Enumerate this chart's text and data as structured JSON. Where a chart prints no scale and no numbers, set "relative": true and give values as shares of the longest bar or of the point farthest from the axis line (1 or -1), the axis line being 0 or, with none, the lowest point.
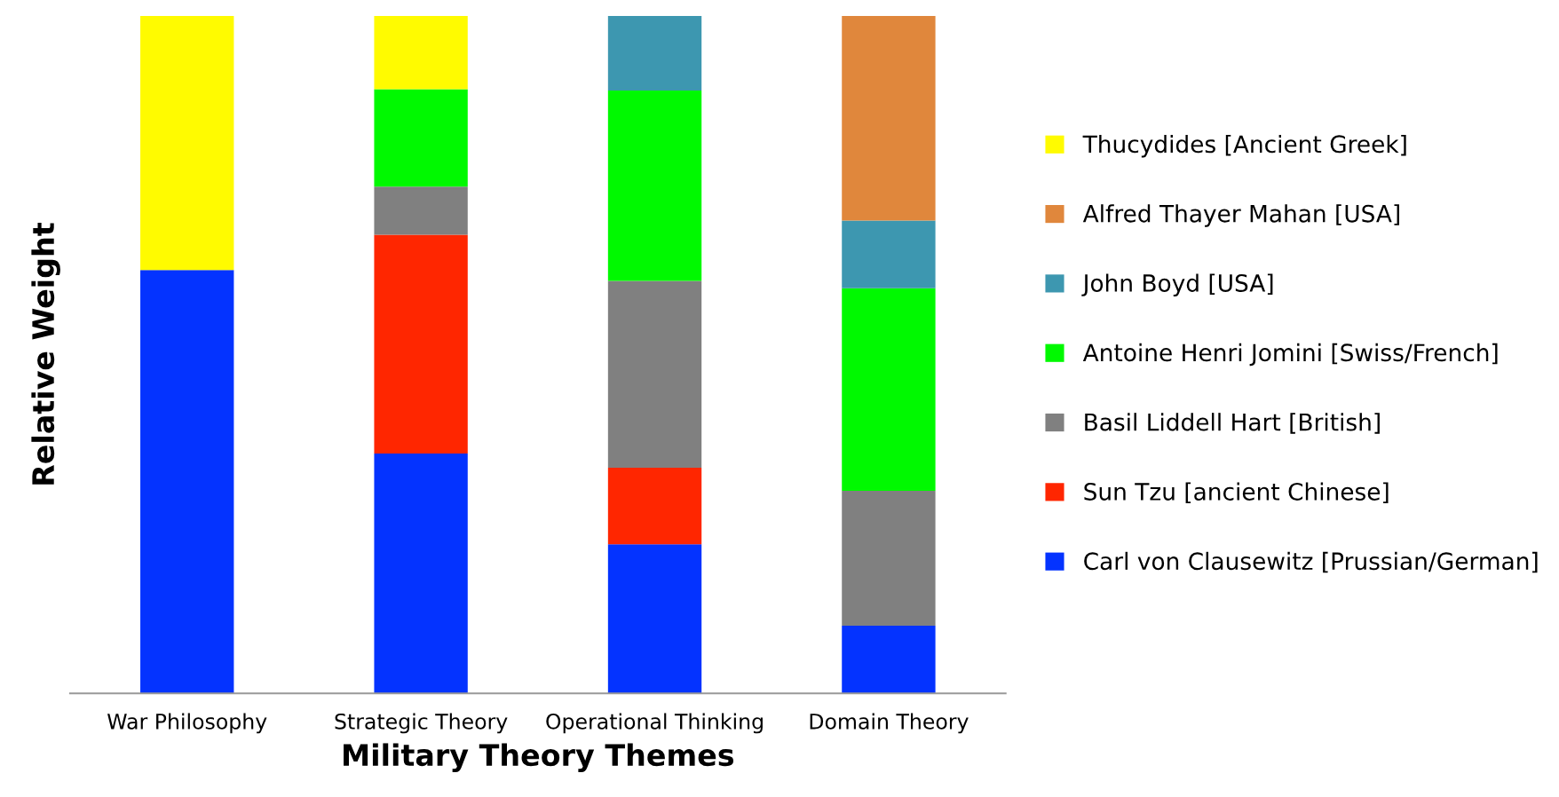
{
  "chart_data": {
    "type": "bar",
    "stacked": true,
    "relative": true,
    "xlabel": "Military Theory Themes",
    "ylabel": "Relative Weight",
    "legend": "right",
    "grid": false,
    "categories": [
      "War Philosophy",
      "Strategic Theory",
      "Operational Thinking",
      "Domain Theory"
    ],
    "series": [
      {
        "name": "Carl von Clausewitz [Prussian/German]",
        "color": "#0433ff",
        "values": [
          0.625,
          0.354,
          0.22,
          0.1
        ]
      },
      {
        "name": "Sun Tzu [ancient Chinese]",
        "color": "#ff2600",
        "values": [
          0,
          0.323,
          0.113,
          0
        ]
      },
      {
        "name": "Basil Liddell Hart [British]",
        "color": "#808080",
        "values": [
          0,
          0.071,
          0.276,
          0.199
        ]
      },
      {
        "name": "Antoine Henri Jomini [Swiss/French]",
        "color": "#00f900",
        "values": [
          0,
          0.144,
          0.281,
          0.299
        ]
      },
      {
        "name": "John Boyd [USA]",
        "color": "#3d97b0",
        "values": [
          0,
          0,
          0.11,
          0.1
        ]
      },
      {
        "name": "Alfred Thayer Mahan [USA]",
        "color": "#e0873c",
        "values": [
          0,
          0,
          0,
          0.302
        ]
      },
      {
        "name": "Thucydides [Ancient Greek]",
        "color": "#fffb00",
        "values": [
          0.375,
          0.108,
          0,
          0
        ]
      }
    ]
  }
}
